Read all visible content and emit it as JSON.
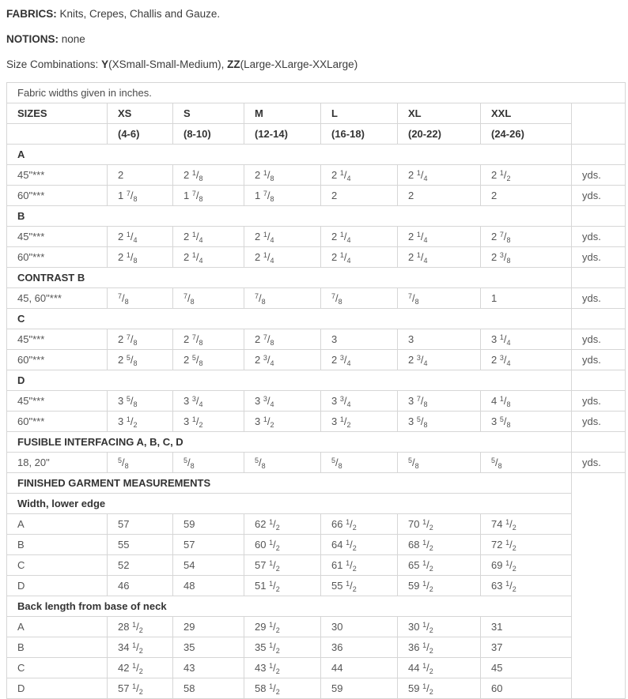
{
  "intro": {
    "fabrics_label": "FABRICS:",
    "fabrics_text": " Knits, Crepes, Challis and Gauze.",
    "notions_label": "NOTIONS:",
    "notions_text": " none",
    "size_combinations_prefix": "Size Combinations: ",
    "size_y_label": "Y",
    "size_y_text": "(XSmall-Small-Medium), ",
    "size_zz_label": "ZZ",
    "size_zz_text": "(Large-XLarge-XXLarge)"
  },
  "table": {
    "caption": "Fabric widths given in inches.",
    "unit": "yds.",
    "header": [
      "SIZES",
      "XS",
      "S",
      "M",
      "L",
      "XL",
      "XXL"
    ],
    "subheader": [
      "",
      "(4-6)",
      "(8-10)",
      "(12-14)",
      "(16-18)",
      "(20-22)",
      "(24-26)"
    ],
    "rows": [
      {
        "type": "section",
        "label": "A"
      },
      {
        "type": "yardage",
        "label": "45\"***",
        "values": [
          "2",
          "2 1/8",
          "2 1/8",
          "2 1/4",
          "2 1/4",
          "2 1/2"
        ]
      },
      {
        "type": "yardage",
        "label": "60\"***",
        "values": [
          "1 7/8",
          "1 7/8",
          "1 7/8",
          "2",
          "2",
          "2"
        ]
      },
      {
        "type": "section",
        "label": "B"
      },
      {
        "type": "yardage",
        "label": "45\"***",
        "values": [
          "2 1/4",
          "2 1/4",
          "2 1/4",
          "2 1/4",
          "2 1/4",
          "2 7/8"
        ]
      },
      {
        "type": "yardage",
        "label": "60\"***",
        "values": [
          "2 1/8",
          "2 1/4",
          "2 1/4",
          "2 1/4",
          "2 1/4",
          "2 3/8"
        ]
      },
      {
        "type": "section",
        "label": "CONTRAST B"
      },
      {
        "type": "yardage",
        "label": "45, 60\"***",
        "values": [
          "7/8",
          "7/8",
          "7/8",
          "7/8",
          "7/8",
          "1"
        ]
      },
      {
        "type": "section",
        "label": "C"
      },
      {
        "type": "yardage",
        "label": "45\"***",
        "values": [
          "2 7/8",
          "2 7/8",
          "2 7/8",
          "3",
          "3",
          "3 1/4"
        ]
      },
      {
        "type": "yardage",
        "label": "60\"***",
        "values": [
          "2 5/8",
          "2 5/8",
          "2 3/4",
          "2 3/4",
          "2 3/4",
          "2 3/4"
        ]
      },
      {
        "type": "section",
        "label": "D"
      },
      {
        "type": "yardage",
        "label": "45\"***",
        "values": [
          "3 5/8",
          "3 3/4",
          "3 3/4",
          "3 3/4",
          "3 7/8",
          "4 1/8"
        ]
      },
      {
        "type": "yardage",
        "label": "60\"***",
        "values": [
          "3 1/2",
          "3 1/2",
          "3 1/2",
          "3 1/2",
          "3 5/8",
          "3 5/8"
        ]
      },
      {
        "type": "section",
        "label": "FUSIBLE INTERFACING A, B, C, D"
      },
      {
        "type": "yardage",
        "label": "18, 20\"",
        "values": [
          "5/8",
          "5/8",
          "5/8",
          "5/8",
          "5/8",
          "5/8"
        ]
      },
      {
        "type": "section",
        "label": "FINISHED GARMENT MEASUREMENTS",
        "measure_block_start": true
      },
      {
        "type": "section",
        "label": "Width, lower edge"
      },
      {
        "type": "measure",
        "label": "A",
        "values": [
          "57",
          "59",
          "62 1/2",
          "66 1/2",
          "70 1/2",
          "74 1/2"
        ]
      },
      {
        "type": "measure",
        "label": "B",
        "values": [
          "55",
          "57",
          "60 1/2",
          "64 1/2",
          "68 1/2",
          "72 1/2"
        ]
      },
      {
        "type": "measure",
        "label": "C",
        "values": [
          "52",
          "54",
          "57 1/2",
          "61 1/2",
          "65 1/2",
          "69 1/2"
        ]
      },
      {
        "type": "measure",
        "label": "D",
        "values": [
          "46",
          "48",
          "51 1/2",
          "55 1/2",
          "59 1/2",
          "63 1/2"
        ]
      },
      {
        "type": "section",
        "label": "Back length from base of neck"
      },
      {
        "type": "measure",
        "label": "A",
        "values": [
          "28 1/2",
          "29",
          "29 1/2",
          "30",
          "30 1/2",
          "31"
        ]
      },
      {
        "type": "measure",
        "label": "B",
        "values": [
          "34 1/2",
          "35",
          "35 1/2",
          "36",
          "36 1/2",
          "37"
        ]
      },
      {
        "type": "measure",
        "label": "C",
        "values": [
          "42 1/2",
          "43",
          "43 1/2",
          "44",
          "44 1/2",
          "45"
        ]
      },
      {
        "type": "measure",
        "label": "D",
        "values": [
          "57 1/2",
          "58",
          "58 1/2",
          "59",
          "59 1/2",
          "60"
        ]
      }
    ]
  }
}
